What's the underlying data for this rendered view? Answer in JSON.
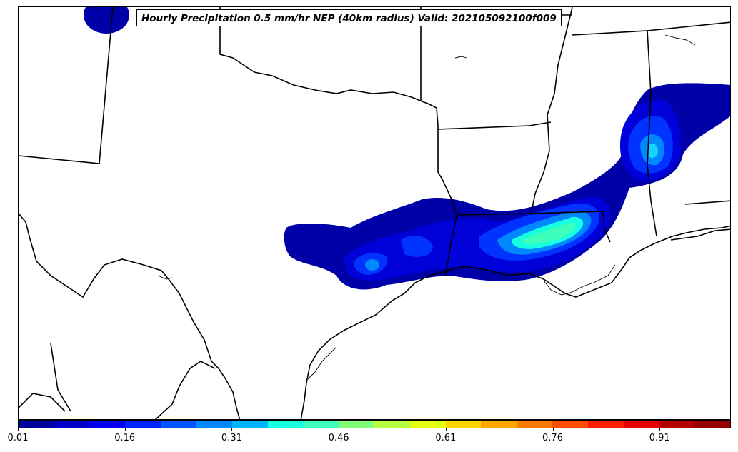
{
  "title": "Hourly Precipitation 0.5 mm/hr NEP (40km radius) Valid: 202105092100f009",
  "colorbar": {
    "colors": [
      "#00009f",
      "#0000c8",
      "#0000ef",
      "#0022ff",
      "#0055ff",
      "#0088ff",
      "#00b4ff",
      "#16ffe1",
      "#3dffba",
      "#80ff77",
      "#b6ff40",
      "#e4ff13",
      "#ffd500",
      "#ffa700",
      "#ff7a00",
      "#ff4d00",
      "#ff1f00",
      "#e60000",
      "#b50000",
      "#980000"
    ],
    "ticks": [
      "0.01",
      "0.16",
      "0.31",
      "0.46",
      "0.61",
      "0.76",
      "0.91"
    ],
    "min": 0.01,
    "max": 1.01
  }
}
